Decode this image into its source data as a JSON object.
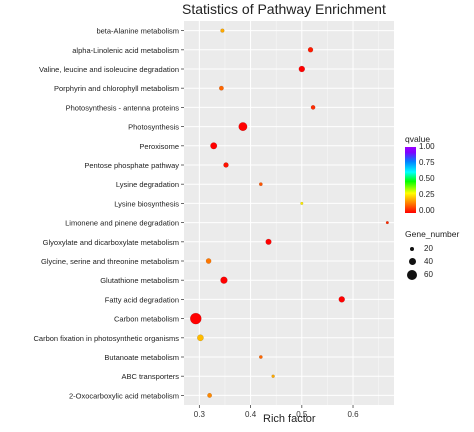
{
  "chart_data": {
    "type": "scatter",
    "title": "Statistics of Pathway Enrichment",
    "xlabel": "Rich factor",
    "ylabel": "",
    "xlim": [
      0.27,
      0.68
    ],
    "xticks": [
      "0.3",
      "0.4",
      "0.5",
      "0.6"
    ],
    "grid": true,
    "categories": [
      "beta-Alanine metabolism",
      "alpha-Linolenic acid metabolism",
      "Valine, leucine and isoleucine degradation",
      "Porphyrin and chlorophyll metabolism",
      "Photosynthesis - antenna proteins",
      "Photosynthesis",
      "Peroxisome",
      "Pentose phosphate pathway",
      "Lysine degradation",
      "Lysine biosynthesis",
      "Limonene and pinene degradation",
      "Glyoxylate and dicarboxylate metabolism",
      "Glycine, serine and threonine metabolism",
      "Glutathione metabolism",
      "Fatty acid degradation",
      "Carbon metabolism",
      "Carbon fixation in photosynthetic organisms",
      "Butanoate metabolism",
      "ABC transporters",
      "2-Oxocarboxylic acid metabolism"
    ],
    "points": [
      {
        "pathway": "beta-Alanine metabolism",
        "rich_factor": 0.345,
        "gene_number": 8,
        "qvalue": 0.2
      },
      {
        "pathway": "alpha-Linolenic acid metabolism",
        "rich_factor": 0.517,
        "gene_number": 14,
        "qvalue": 0.03
      },
      {
        "pathway": "Valine, leucine and isoleucine degradation",
        "rich_factor": 0.5,
        "gene_number": 20,
        "qvalue": 0.0
      },
      {
        "pathway": "Porphyrin and chlorophyll metabolism",
        "rich_factor": 0.343,
        "gene_number": 11,
        "qvalue": 0.12
      },
      {
        "pathway": "Photosynthesis - antenna proteins",
        "rich_factor": 0.522,
        "gene_number": 10,
        "qvalue": 0.05
      },
      {
        "pathway": "Photosynthesis",
        "rich_factor": 0.385,
        "gene_number": 40,
        "qvalue": 0.0
      },
      {
        "pathway": "Peroxisome",
        "rich_factor": 0.328,
        "gene_number": 24,
        "qvalue": 0.0
      },
      {
        "pathway": "Pentose phosphate pathway",
        "rich_factor": 0.352,
        "gene_number": 14,
        "qvalue": 0.02
      },
      {
        "pathway": "Lysine degradation",
        "rich_factor": 0.42,
        "gene_number": 6,
        "qvalue": 0.1
      },
      {
        "pathway": "Lysine biosynthesis",
        "rich_factor": 0.5,
        "gene_number": 4,
        "qvalue": 0.28
      },
      {
        "pathway": "Limonene and pinene degradation",
        "rich_factor": 0.667,
        "gene_number": 4,
        "qvalue": 0.05
      },
      {
        "pathway": "Glyoxylate and dicarboxylate metabolism",
        "rich_factor": 0.435,
        "gene_number": 18,
        "qvalue": 0.0
      },
      {
        "pathway": "Glycine, serine and threonine metabolism",
        "rich_factor": 0.318,
        "gene_number": 15,
        "qvalue": 0.14
      },
      {
        "pathway": "Glutathione metabolism",
        "rich_factor": 0.348,
        "gene_number": 26,
        "qvalue": 0.0
      },
      {
        "pathway": "Fatty acid degradation",
        "rich_factor": 0.578,
        "gene_number": 20,
        "qvalue": 0.0
      },
      {
        "pathway": "Carbon metabolism",
        "rich_factor": 0.293,
        "gene_number": 68,
        "qvalue": 0.0
      },
      {
        "pathway": "Carbon fixation in photosynthetic organisms",
        "rich_factor": 0.302,
        "gene_number": 22,
        "qvalue": 0.22
      },
      {
        "pathway": "Butanoate metabolism",
        "rich_factor": 0.42,
        "gene_number": 6,
        "qvalue": 0.12
      },
      {
        "pathway": "ABC transporters",
        "rich_factor": 0.444,
        "gene_number": 5,
        "qvalue": 0.2
      },
      {
        "pathway": "2-Oxocarboxylic acid metabolism",
        "rich_factor": 0.32,
        "gene_number": 11,
        "qvalue": 0.16
      }
    ],
    "color_legend": {
      "title": "qvalue",
      "ticks": [
        "1.00",
        "0.75",
        "0.50",
        "0.25",
        "0.00"
      ]
    },
    "size_legend": {
      "title": "Gene_number",
      "values": [
        20,
        40,
        60
      ],
      "labels": [
        "20",
        "40",
        "60"
      ]
    },
    "legend_placement": "right",
    "colors": {
      "panel_bg": "#ebebeb",
      "grid": "#ffffff",
      "low_q": "#ff0000",
      "high_q": "#9900ff"
    }
  }
}
